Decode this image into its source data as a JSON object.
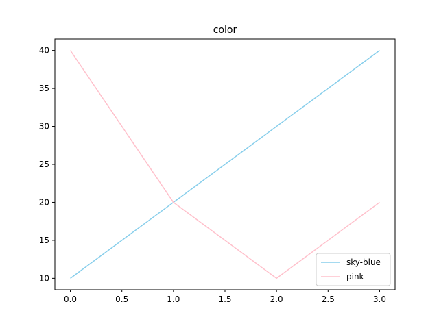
{
  "chart_data": {
    "type": "line",
    "title": "color",
    "xlabel": "",
    "ylabel": "",
    "xlim": [
      -0.15,
      3.15
    ],
    "ylim": [
      8.5,
      41.5
    ],
    "xticks": [
      0.0,
      0.5,
      1.0,
      1.5,
      2.0,
      2.5,
      3.0
    ],
    "xtick_labels": [
      "0.0",
      "0.5",
      "1.0",
      "1.5",
      "2.0",
      "2.5",
      "3.0"
    ],
    "yticks": [
      10,
      15,
      20,
      25,
      30,
      35,
      40
    ],
    "ytick_labels": [
      "10",
      "15",
      "20",
      "25",
      "30",
      "35",
      "40"
    ],
    "grid": false,
    "legend_position": "lower-right",
    "series": [
      {
        "name": "sky-blue",
        "color": "#87ceeb",
        "x": [
          0,
          1,
          2,
          3
        ],
        "values": [
          10,
          20,
          30,
          40
        ]
      },
      {
        "name": "pink",
        "color": "#ffc0cb",
        "x": [
          0,
          1,
          2,
          3
        ],
        "values": [
          40,
          20,
          10,
          20
        ]
      }
    ]
  }
}
